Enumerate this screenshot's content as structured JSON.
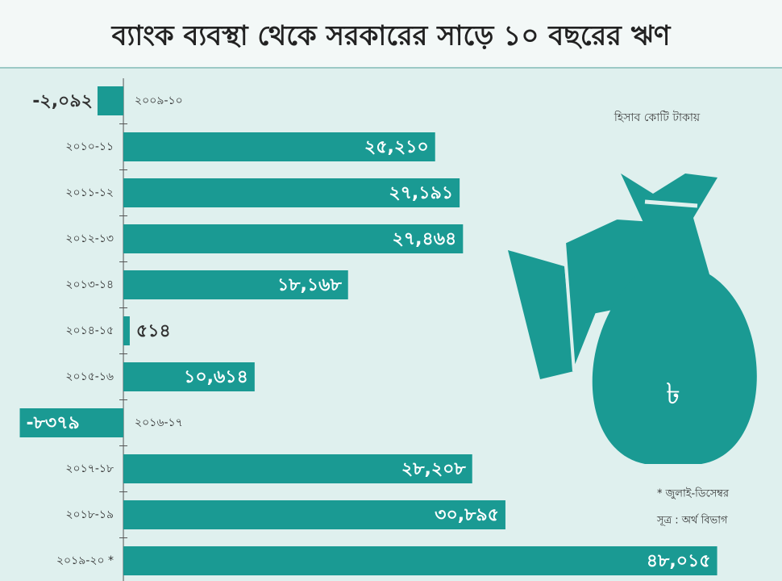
{
  "chart_data": {
    "type": "barh",
    "title": "ব্যাংক ব্যবস্থা থেকে সরকারের সাড়ে ১০ বছরের ঋণ",
    "unit_note": "হিসাব কোটি টাকায়",
    "footnote": "* জুলাই-ডিসেম্বর",
    "source": "সূত্র : অর্থ বিভাগ",
    "categories": [
      "২০০৯-১০",
      "২০১০-১১",
      "২০১১-১২",
      "২০১২-১৩",
      "২০১৩-১৪",
      "২০১৪-১৫",
      "২০১৫-১৬",
      "২০১৬-১৭",
      "২০১৭-১৮",
      "২০১৮-১৯",
      "২০১৯-২০ *"
    ],
    "values": [
      -2092,
      25210,
      27191,
      27464,
      18168,
      514,
      10614,
      -8379,
      28208,
      30895,
      48015
    ],
    "value_labels": [
      "-২,০৯২",
      "২৫,২১০",
      "২৭,১৯১",
      "২৭,৪৬৪",
      "১৮,১৬৮",
      "৫১৪",
      "১০,৬১৪",
      "-৮৩৭৯",
      "২৮,২০৮",
      "৩০,৮৯৫",
      "৪৮,০১৫"
    ],
    "color": "#1a9a93",
    "xlim": [
      -9000,
      50000
    ]
  }
}
